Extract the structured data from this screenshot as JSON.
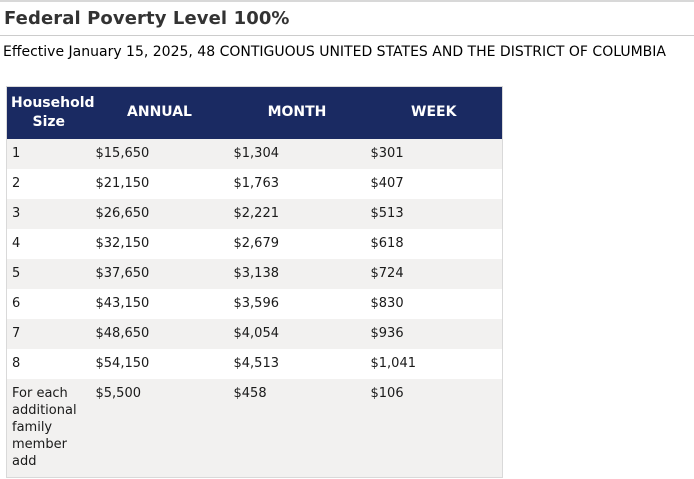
{
  "page": {
    "title": "Federal Poverty Level 100%",
    "subtitle": "Effective January 15, 2025, 48 CONTIGUOUS UNITED STATES AND THE DISTRICT OF COLUMBIA"
  },
  "colors": {
    "header_bg": "#1a2a62",
    "header_text": "#ffffff",
    "row_alt_bg": "#f2f1f0",
    "table_border": "#d9d9d9",
    "rule_color": "#cccccc",
    "title_color": "#333333"
  },
  "table": {
    "columns": [
      "Household Size",
      "ANNUAL",
      "MONTH",
      "WEEK"
    ],
    "rows": [
      {
        "size": "1",
        "annual": "$15,650",
        "month": "$1,304",
        "week": "$301"
      },
      {
        "size": "2",
        "annual": "$21,150",
        "month": "$1,763",
        "week": "$407"
      },
      {
        "size": "3",
        "annual": "$26,650",
        "month": "$2,221",
        "week": "$513"
      },
      {
        "size": "4",
        "annual": "$32,150",
        "month": "$2,679",
        "week": "$618"
      },
      {
        "size": "5",
        "annual": "$37,650",
        "month": "$3,138",
        "week": "$724"
      },
      {
        "size": "6",
        "annual": "$43,150",
        "month": "$3,596",
        "week": "$830"
      },
      {
        "size": "7",
        "annual": "$48,650",
        "month": "$4,054",
        "week": "$936"
      },
      {
        "size": "8",
        "annual": "$54,150",
        "month": "$4,513",
        "week": "$1,041"
      },
      {
        "size": "For each additional family member add",
        "annual": "$5,500",
        "month": "$458",
        "week": "$106"
      }
    ]
  }
}
